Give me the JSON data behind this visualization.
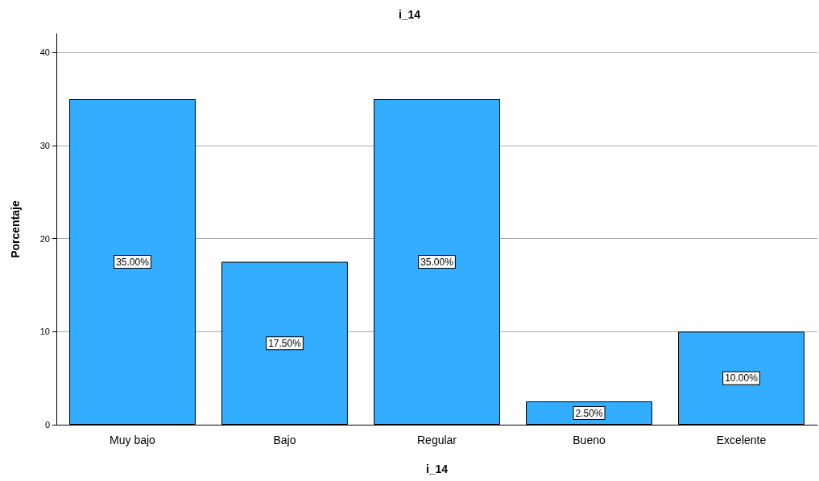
{
  "chart_data": {
    "type": "bar",
    "title": "i_14",
    "xlabel": "i_14",
    "ylabel": "Porcentaje",
    "categories": [
      "Muy bajo",
      "Bajo",
      "Regular",
      "Bueno",
      "Excelente"
    ],
    "values": [
      35,
      17.5,
      35,
      2.5,
      10
    ],
    "value_labels": [
      "35.00%",
      "17.50%",
      "35.00%",
      "2.50%",
      "10.00%"
    ],
    "color": "#33adff",
    "ylim": [
      0,
      42
    ],
    "yticks": [
      0,
      10,
      20,
      30,
      40
    ],
    "grid": "y"
  }
}
